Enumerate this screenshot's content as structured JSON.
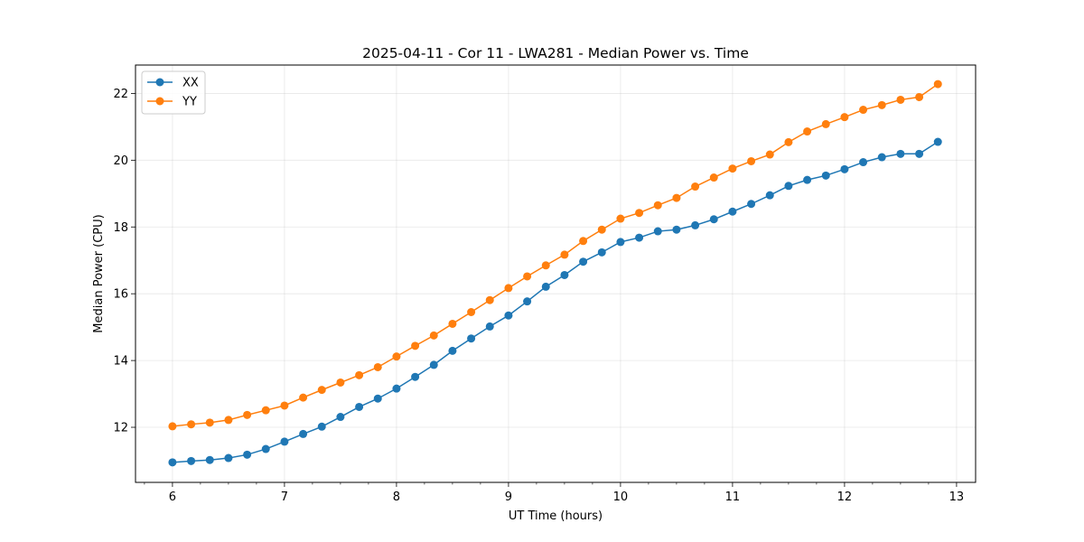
{
  "chart_data": {
    "type": "line",
    "title": "2025-04-11 - Cor 11 - LWA281 - Median Power vs. Time",
    "xlabel": "UT Time (hours)",
    "ylabel": "Median Power (CPU)",
    "xlim": [
      5.67,
      13.17
    ],
    "ylim": [
      10.35,
      22.85
    ],
    "xticks": [
      6,
      7,
      8,
      9,
      10,
      11,
      12,
      13
    ],
    "yticks": [
      12,
      14,
      16,
      18,
      20,
      22
    ],
    "grid": true,
    "legend_position": "top-left",
    "x": [
      6.0,
      6.1667,
      6.3333,
      6.5,
      6.6667,
      6.8333,
      7.0,
      7.1667,
      7.3333,
      7.5,
      7.6667,
      7.8333,
      8.0,
      8.1667,
      8.3333,
      8.5,
      8.6667,
      8.8333,
      9.0,
      9.1667,
      9.3333,
      9.5,
      9.6667,
      9.8333,
      10.0,
      10.1667,
      10.3333,
      10.5,
      10.6667,
      10.8333,
      11.0,
      11.1667,
      11.3333,
      11.5,
      11.6667,
      11.8333,
      12.0,
      12.1667,
      12.3333,
      12.5,
      12.6667,
      12.8333
    ],
    "series": [
      {
        "name": "XX",
        "color": "#1f77b4",
        "values": [
          10.95,
          10.99,
          11.02,
          11.08,
          11.18,
          11.35,
          11.57,
          11.8,
          12.02,
          12.31,
          12.61,
          12.86,
          13.16,
          13.51,
          13.87,
          14.29,
          14.66,
          15.02,
          15.35,
          15.77,
          16.21,
          16.56,
          16.96,
          17.24,
          17.55,
          17.68,
          17.87,
          17.92,
          18.05,
          18.23,
          18.46,
          18.69,
          18.95,
          19.23,
          19.41,
          19.54,
          19.73,
          19.94,
          20.09,
          20.19,
          20.19,
          20.55
        ]
      },
      {
        "name": "YY",
        "color": "#ff7f0e",
        "values": [
          12.03,
          12.09,
          12.14,
          12.22,
          12.37,
          12.51,
          12.65,
          12.89,
          13.12,
          13.34,
          13.56,
          13.8,
          14.12,
          14.44,
          14.75,
          15.1,
          15.45,
          15.81,
          16.17,
          16.52,
          16.85,
          17.17,
          17.58,
          17.92,
          18.25,
          18.42,
          18.65,
          18.87,
          19.21,
          19.48,
          19.75,
          19.97,
          20.17,
          20.54,
          20.86,
          21.08,
          21.29,
          21.51,
          21.65,
          21.81,
          21.89,
          22.28
        ]
      }
    ]
  }
}
